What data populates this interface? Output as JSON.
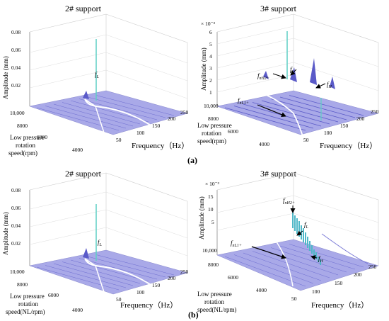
{
  "colors": {
    "surface": "#a6a6e6",
    "ridge_dark": "#5a5ac8",
    "ridge_light": "#ffffff",
    "spike": "#5ecfc4",
    "grid": "#d4d4d4",
    "axis": "#808080",
    "arrow": "#000000"
  },
  "panel_labels": {
    "a": "(a)",
    "b": "(b)"
  },
  "charts": [
    {
      "title": "2# support",
      "ylabel": "Amplitude (mm)",
      "scale_note": "",
      "z_ticks": [
        "0.02",
        "0.04",
        "0.06",
        "0.08"
      ],
      "speed_ticks": [
        "10,000",
        "8000",
        "6000",
        "4000"
      ],
      "speed_label_lines": [
        "Low pressure",
        "rotation",
        "speed(rpm)"
      ],
      "freq_ticks": [
        "50",
        "100",
        "150",
        "200",
        "250"
      ],
      "xlabel": "Frequency（Hz）",
      "annotations": [
        {
          "main": "f",
          "sub": "L"
        }
      ]
    },
    {
      "title": "3# support",
      "ylabel": "Amplitude (mm)",
      "scale_note": "× 10⁻³",
      "z_ticks": [
        "1",
        "2",
        "3",
        "4",
        "5",
        "6"
      ],
      "speed_ticks": [
        "10,000",
        "8000",
        "6000",
        "4000"
      ],
      "speed_label_lines": [
        "Low pressure",
        "rotation",
        "speed(rpm)"
      ],
      "freq_ticks": [
        "50",
        "100",
        "150",
        "200",
        "250"
      ],
      "xlabel": "Frequency（Hz）",
      "annotations": [
        {
          "main": "f",
          "sub": "L"
        },
        {
          "main": "f",
          "sub": "nH2+"
        },
        {
          "main": "f",
          "sub": "H"
        },
        {
          "main": "f",
          "sub": "nL1+"
        }
      ]
    },
    {
      "title": "2# support",
      "ylabel": "Amplitude (mm)",
      "scale_note": "",
      "z_ticks": [
        "0.02",
        "0.04",
        "0.06",
        "0.08"
      ],
      "speed_ticks": [
        "10,000",
        "8000",
        "6000",
        "4000"
      ],
      "speed_label_lines": [
        "Low pressure",
        "rotation",
        "speed(NL/rpm)"
      ],
      "freq_ticks": [
        "50",
        "100",
        "150",
        "200",
        "250"
      ],
      "xlabel": "Frequency（Hz）",
      "annotations": [
        {
          "main": "f",
          "sub": "L"
        }
      ]
    },
    {
      "title": "3# support",
      "ylabel": "Amplitude (mm)",
      "scale_note": "× 10⁻³",
      "z_ticks": [
        "5",
        "10",
        "15"
      ],
      "speed_ticks": [
        "10,000",
        "8000",
        "6000",
        "4000"
      ],
      "speed_label_lines": [
        "Low pressure",
        "rotation",
        "speed(NL/rpm)"
      ],
      "freq_ticks": [
        "50",
        "100",
        "150",
        "200",
        "250"
      ],
      "xlabel": "Frequency（Hz）",
      "annotations": [
        {
          "main": "f",
          "sub": "nH2+"
        },
        {
          "main": "f",
          "sub": "L"
        },
        {
          "main": "f",
          "sub": "nL1+"
        },
        {
          "main": "f",
          "sub": "H"
        }
      ]
    }
  ],
  "chart_data": [
    {
      "type": "surface3d",
      "title": "2# support",
      "x_axis": "Frequency（Hz）",
      "x_range": [
        0,
        250
      ],
      "y_axis": "Low pressure rotation speed(rpm)",
      "y_range": [
        3000,
        10000
      ],
      "z_axis": "Amplitude (mm)",
      "z_range": [
        0,
        0.08
      ],
      "grid": true,
      "series": [
        {
          "name": "fL",
          "x": [
            150
          ],
          "y": [
            10000
          ],
          "z": [
            0.068
          ]
        }
      ]
    },
    {
      "type": "surface3d",
      "title": "3# support",
      "x_axis": "Frequency（Hz）",
      "x_range": [
        0,
        250
      ],
      "y_axis": "Low pressure rotation speed(rpm)",
      "y_range": [
        3000,
        10000
      ],
      "z_axis": "Amplitude (mm)",
      "z_scale": 0.001,
      "z_range": [
        0,
        6
      ],
      "grid": true,
      "series": [
        {
          "name": "fL",
          "x": [
            150
          ],
          "y": [
            10000
          ],
          "z": [
            5.6
          ]
        },
        {
          "name": "fnH2+",
          "x": [
            120
          ],
          "y": [
            9500
          ],
          "z": [
            2.3
          ]
        },
        {
          "name": "fH",
          "x": [
            200
          ],
          "y": [
            9000
          ],
          "z": [
            2.6
          ]
        },
        {
          "name": "fnL1+",
          "x": [
            90
          ],
          "y": [
            8500
          ],
          "z": [
            3.4
          ]
        }
      ]
    },
    {
      "type": "surface3d",
      "title": "2# support",
      "x_axis": "Frequency（Hz）",
      "x_range": [
        0,
        250
      ],
      "y_axis": "Low pressure rotation speed(NL/rpm)",
      "y_range": [
        3000,
        10000
      ],
      "z_axis": "Amplitude (mm)",
      "z_range": [
        0,
        0.08
      ],
      "grid": true,
      "series": [
        {
          "name": "fL",
          "x": [
            150
          ],
          "y": [
            10000
          ],
          "z": [
            0.062
          ]
        }
      ]
    },
    {
      "type": "surface3d",
      "title": "3# support",
      "x_axis": "Frequency（Hz）",
      "x_range": [
        0,
        250
      ],
      "y_axis": "Low pressure rotation speed(NL/rpm)",
      "y_range": [
        3000,
        10000
      ],
      "z_axis": "Amplitude (mm)",
      "z_scale": 0.001,
      "z_range": [
        0,
        15
      ],
      "grid": true,
      "series": [
        {
          "name": "fnH2+",
          "x": [
            120
          ],
          "y": [
            10000
          ],
          "z": [
            12
          ]
        },
        {
          "name": "fL",
          "x": [
            150
          ],
          "y": [
            10000
          ],
          "z": [
            9
          ]
        },
        {
          "name": "fnL1+",
          "x": [
            90
          ],
          "y": [
            8500
          ],
          "z": [
            7
          ]
        },
        {
          "name": "fH",
          "x": [
            200
          ],
          "y": [
            8000
          ],
          "z": [
            3
          ]
        }
      ]
    }
  ]
}
